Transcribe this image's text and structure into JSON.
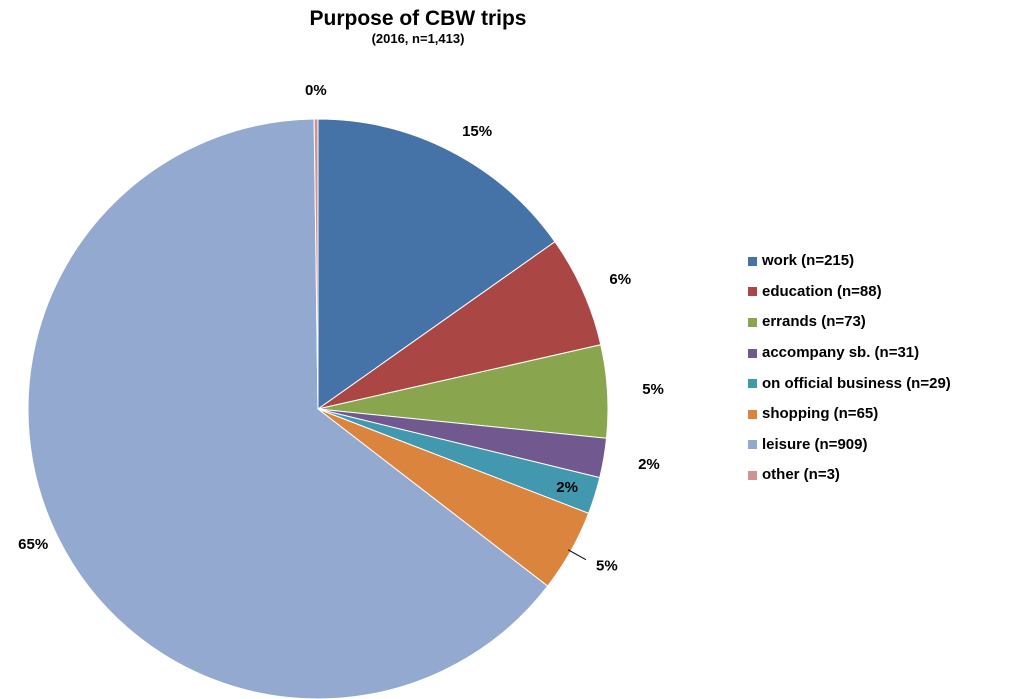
{
  "chart_data": {
    "type": "pie",
    "title": "Purpose of CBW trips",
    "subtitle": "(2016, n=1,413)",
    "legend_position": "right",
    "slices": [
      {
        "legend": "work (n=215)",
        "value": 215,
        "label": "15%",
        "color": "#4572A7"
      },
      {
        "legend": "education (n=88)",
        "value": 88,
        "label": "6%",
        "color": "#AA4643"
      },
      {
        "legend": "errands (n=73)",
        "value": 73,
        "label": "5%",
        "color": "#89A54E"
      },
      {
        "legend": "accompany sb. (n=31)",
        "value": 31,
        "label": "2%",
        "color": "#71588F"
      },
      {
        "legend": "on official business (n=29)",
        "value": 29,
        "label": "2%",
        "color": "#4198AF"
      },
      {
        "legend": "shopping (n=65)",
        "value": 65,
        "label": "5%",
        "color": "#DB843D"
      },
      {
        "legend": "leisure (n=909)",
        "value": 909,
        "label": "65%",
        "color": "#93A9CF"
      },
      {
        "legend": "other (n=3)",
        "value": 3,
        "label": "0%",
        "color": "#D19392"
      }
    ]
  }
}
